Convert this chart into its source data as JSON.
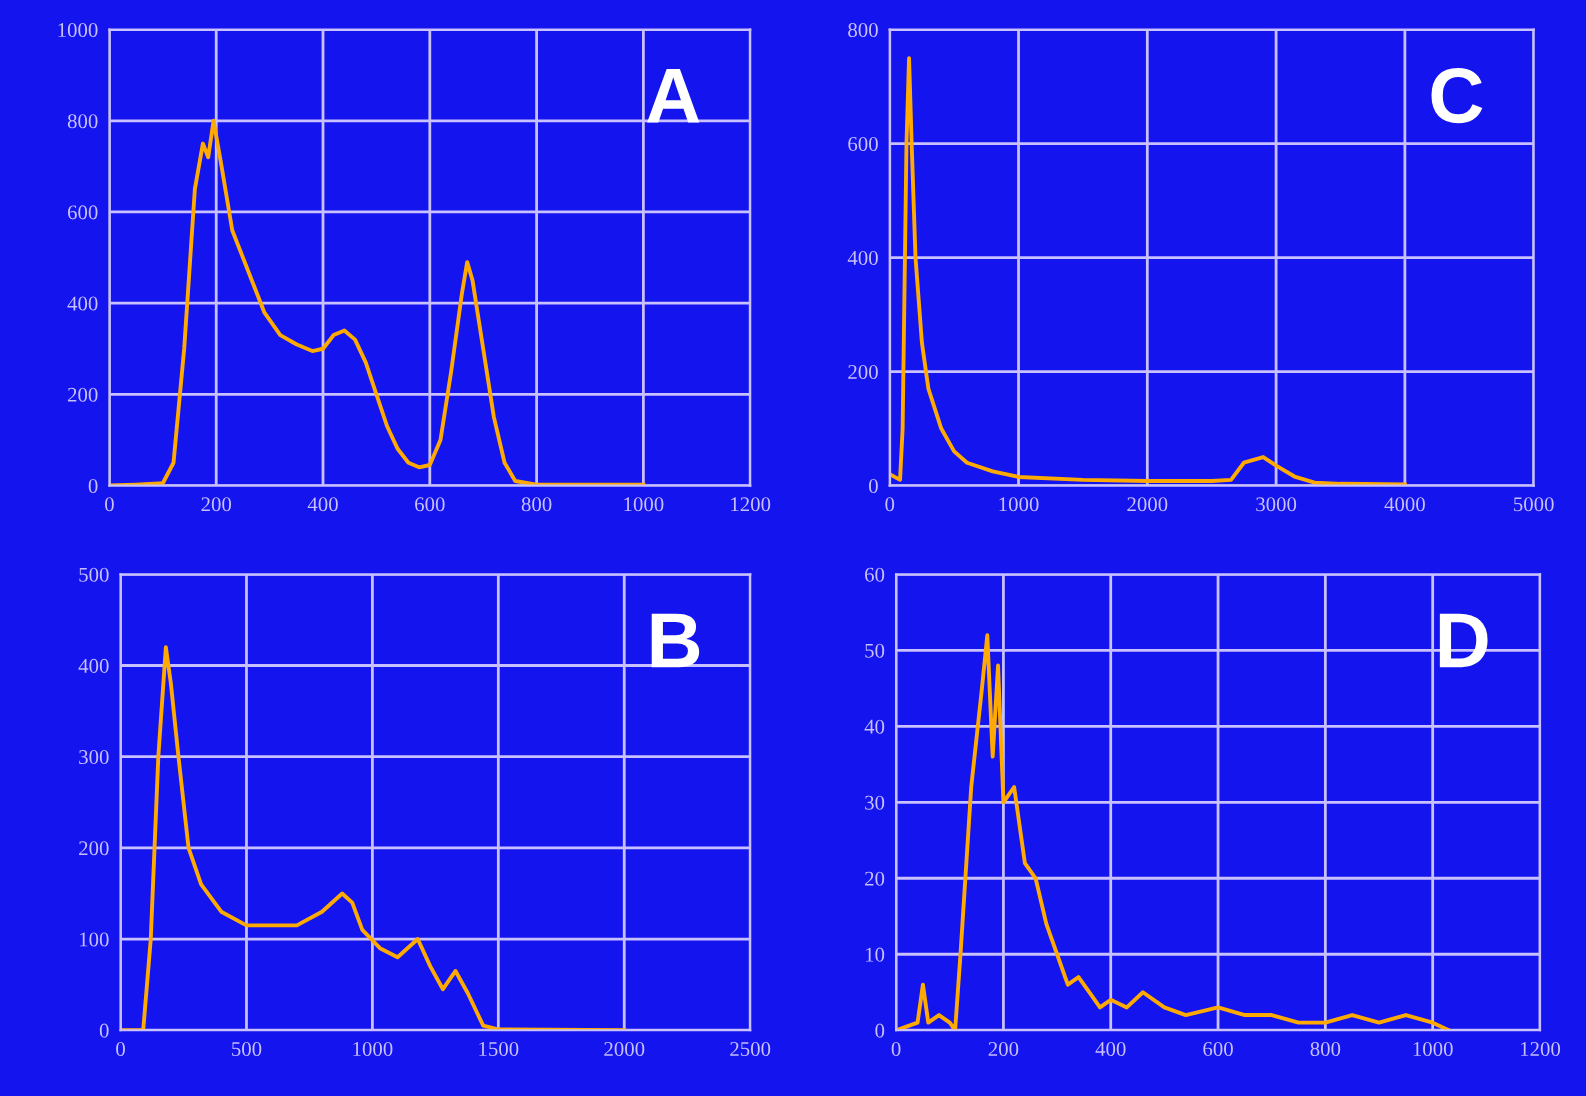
{
  "chart_data": [
    {
      "type": "line",
      "title": "A",
      "xlim": [
        0,
        1200
      ],
      "ylim": [
        0,
        1000
      ],
      "xticks": [
        0,
        200,
        400,
        600,
        800,
        1000,
        1200
      ],
      "yticks": [
        0,
        200,
        400,
        600,
        800,
        1000
      ],
      "grid": true,
      "series": [
        {
          "color": "#ffaa00",
          "x": [
            0,
            50,
            100,
            120,
            140,
            160,
            175,
            185,
            195,
            210,
            230,
            260,
            290,
            320,
            350,
            380,
            400,
            420,
            440,
            460,
            480,
            500,
            520,
            540,
            560,
            580,
            600,
            620,
            640,
            660,
            670,
            680,
            700,
            720,
            740,
            760,
            800,
            1000
          ],
          "values": [
            0,
            2,
            5,
            50,
            300,
            650,
            750,
            720,
            800,
            700,
            560,
            470,
            380,
            330,
            310,
            295,
            300,
            330,
            340,
            320,
            270,
            200,
            130,
            80,
            50,
            40,
            45,
            100,
            250,
            420,
            490,
            450,
            300,
            150,
            50,
            10,
            2,
            2
          ]
        }
      ]
    },
    {
      "type": "line",
      "title": "C",
      "xlim": [
        0,
        5000
      ],
      "ylim": [
        0,
        800
      ],
      "xticks": [
        0,
        1000,
        2000,
        3000,
        4000,
        5000
      ],
      "yticks": [
        0,
        200,
        400,
        600,
        800
      ],
      "grid": true,
      "series": [
        {
          "color": "#ffaa00",
          "x": [
            0,
            80,
            100,
            130,
            150,
            170,
            200,
            250,
            300,
            400,
            500,
            600,
            800,
            1000,
            1500,
            2000,
            2500,
            2650,
            2750,
            2900,
            3000,
            3150,
            3300,
            3500,
            4000
          ],
          "values": [
            20,
            10,
            100,
            600,
            750,
            600,
            400,
            250,
            170,
            100,
            60,
            40,
            25,
            15,
            10,
            8,
            8,
            10,
            40,
            50,
            35,
            15,
            5,
            3,
            2
          ]
        }
      ]
    },
    {
      "type": "line",
      "title": "B",
      "xlim": [
        0,
        2500
      ],
      "ylim": [
        0,
        500
      ],
      "xticks": [
        0,
        500,
        1000,
        1500,
        2000,
        2500
      ],
      "yticks": [
        0,
        100,
        200,
        300,
        400,
        500
      ],
      "grid": true,
      "series": [
        {
          "color": "#ffaa00",
          "x": [
            0,
            90,
            120,
            150,
            180,
            200,
            230,
            270,
            320,
            400,
            500,
            600,
            700,
            800,
            880,
            920,
            960,
            1030,
            1100,
            1180,
            1230,
            1280,
            1330,
            1380,
            1440,
            1500,
            2000
          ],
          "values": [
            0,
            0,
            100,
            300,
            420,
            380,
            300,
            200,
            160,
            130,
            115,
            115,
            115,
            130,
            150,
            140,
            110,
            90,
            80,
            100,
            70,
            45,
            65,
            40,
            5,
            1,
            0
          ]
        }
      ]
    },
    {
      "type": "line",
      "title": "D",
      "xlim": [
        0,
        1200
      ],
      "ylim": [
        0,
        60
      ],
      "xticks": [
        0,
        200,
        400,
        600,
        800,
        1000,
        1200
      ],
      "yticks": [
        0,
        10,
        20,
        30,
        40,
        50,
        60
      ],
      "grid": true,
      "series": [
        {
          "color": "#ffaa00",
          "x": [
            0,
            40,
            50,
            60,
            80,
            100,
            110,
            120,
            140,
            160,
            170,
            180,
            190,
            200,
            220,
            240,
            260,
            280,
            300,
            320,
            340,
            360,
            380,
            400,
            430,
            460,
            500,
            540,
            600,
            650,
            700,
            750,
            800,
            850,
            900,
            950,
            1000,
            1030
          ],
          "values": [
            0,
            1,
            6,
            1,
            2,
            1,
            0,
            10,
            32,
            45,
            52,
            36,
            48,
            30,
            32,
            22,
            20,
            14,
            10,
            6,
            7,
            5,
            3,
            4,
            3,
            5,
            3,
            2,
            3,
            2,
            2,
            1,
            1,
            2,
            1,
            2,
            1,
            0
          ]
        }
      ]
    }
  ]
}
